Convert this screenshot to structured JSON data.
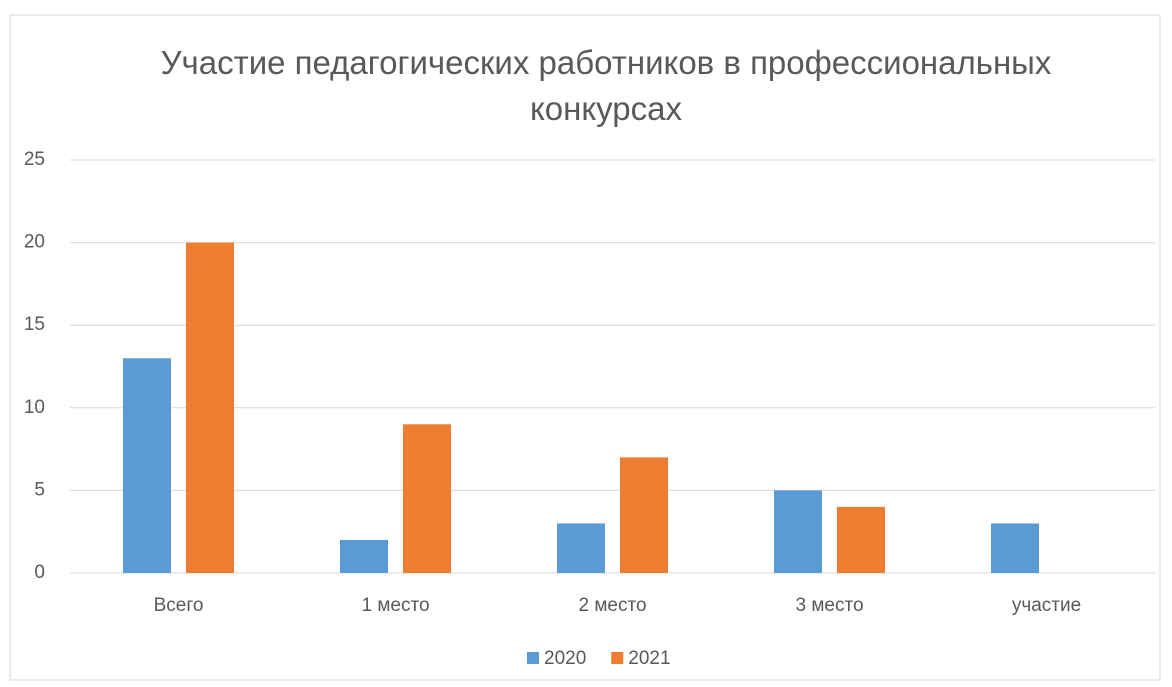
{
  "chart_data": {
    "type": "bar",
    "title": "Участие педагогических работников в профессиональных конкурсах",
    "categories": [
      "Всего",
      "1 место",
      "2 место",
      "3 место",
      "участие"
    ],
    "series": [
      {
        "name": "2020",
        "color": "#5b9bd5",
        "values": [
          13,
          2,
          3,
          5,
          3
        ]
      },
      {
        "name": "2021",
        "color": "#ed7d31",
        "values": [
          20,
          9,
          7,
          4,
          0
        ]
      }
    ],
    "ylim": [
      0,
      25
    ],
    "yticks": [
      0,
      5,
      10,
      15,
      20,
      25
    ],
    "grid": true,
    "legend": "bottom"
  }
}
